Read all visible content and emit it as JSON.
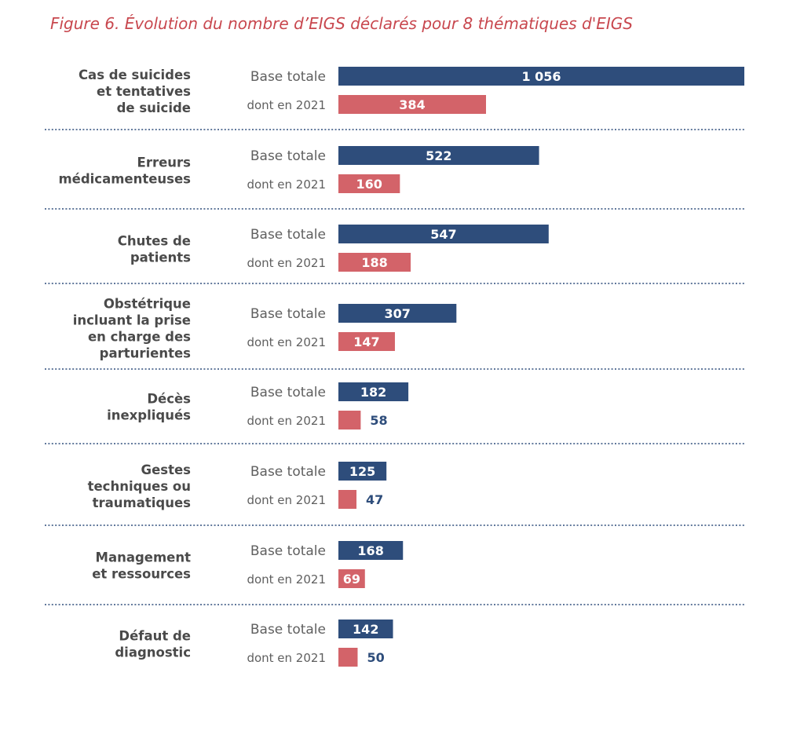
{
  "title": "Figure 6. Évolution du nombre d’EIGS déclarés pour 8 thématiques d'EIGS",
  "chart_data": {
    "type": "bar",
    "orientation": "horizontal",
    "title": "Figure 6. Évolution du nombre d’EIGS déclarés pour 8 thématiques d'EIGS",
    "categories": [
      [
        "Cas de suicides",
        "et tentatives",
        "de suicide"
      ],
      [
        "Erreurs",
        "médicamenteuses"
      ],
      [
        "Chutes de",
        "patients"
      ],
      [
        "Obstétrique",
        "incluant la prise",
        "en charge des",
        "parturientes"
      ],
      [
        "Décès",
        "inexpliqués"
      ],
      [
        "Gestes",
        "techniques ou",
        "traumatiques"
      ],
      [
        "Management",
        "et ressources"
      ],
      [
        "Défaut de",
        "diagnostic"
      ]
    ],
    "series": [
      {
        "name": "Base totale",
        "color": "#2e4d7b",
        "values": [
          1056,
          522,
          547,
          307,
          182,
          125,
          168,
          142
        ],
        "labels": [
          "1 056",
          "522",
          "547",
          "307",
          "182",
          "125",
          "168",
          "142"
        ]
      },
      {
        "name": "dont en 2021",
        "color": "#d36369",
        "values": [
          384,
          160,
          188,
          147,
          58,
          47,
          69,
          50
        ],
        "labels": [
          "384",
          "160",
          "188",
          "147",
          "58",
          "47",
          "69",
          "50"
        ]
      }
    ],
    "xlim": [
      0,
      1056
    ],
    "grid": false,
    "legend": "none"
  }
}
